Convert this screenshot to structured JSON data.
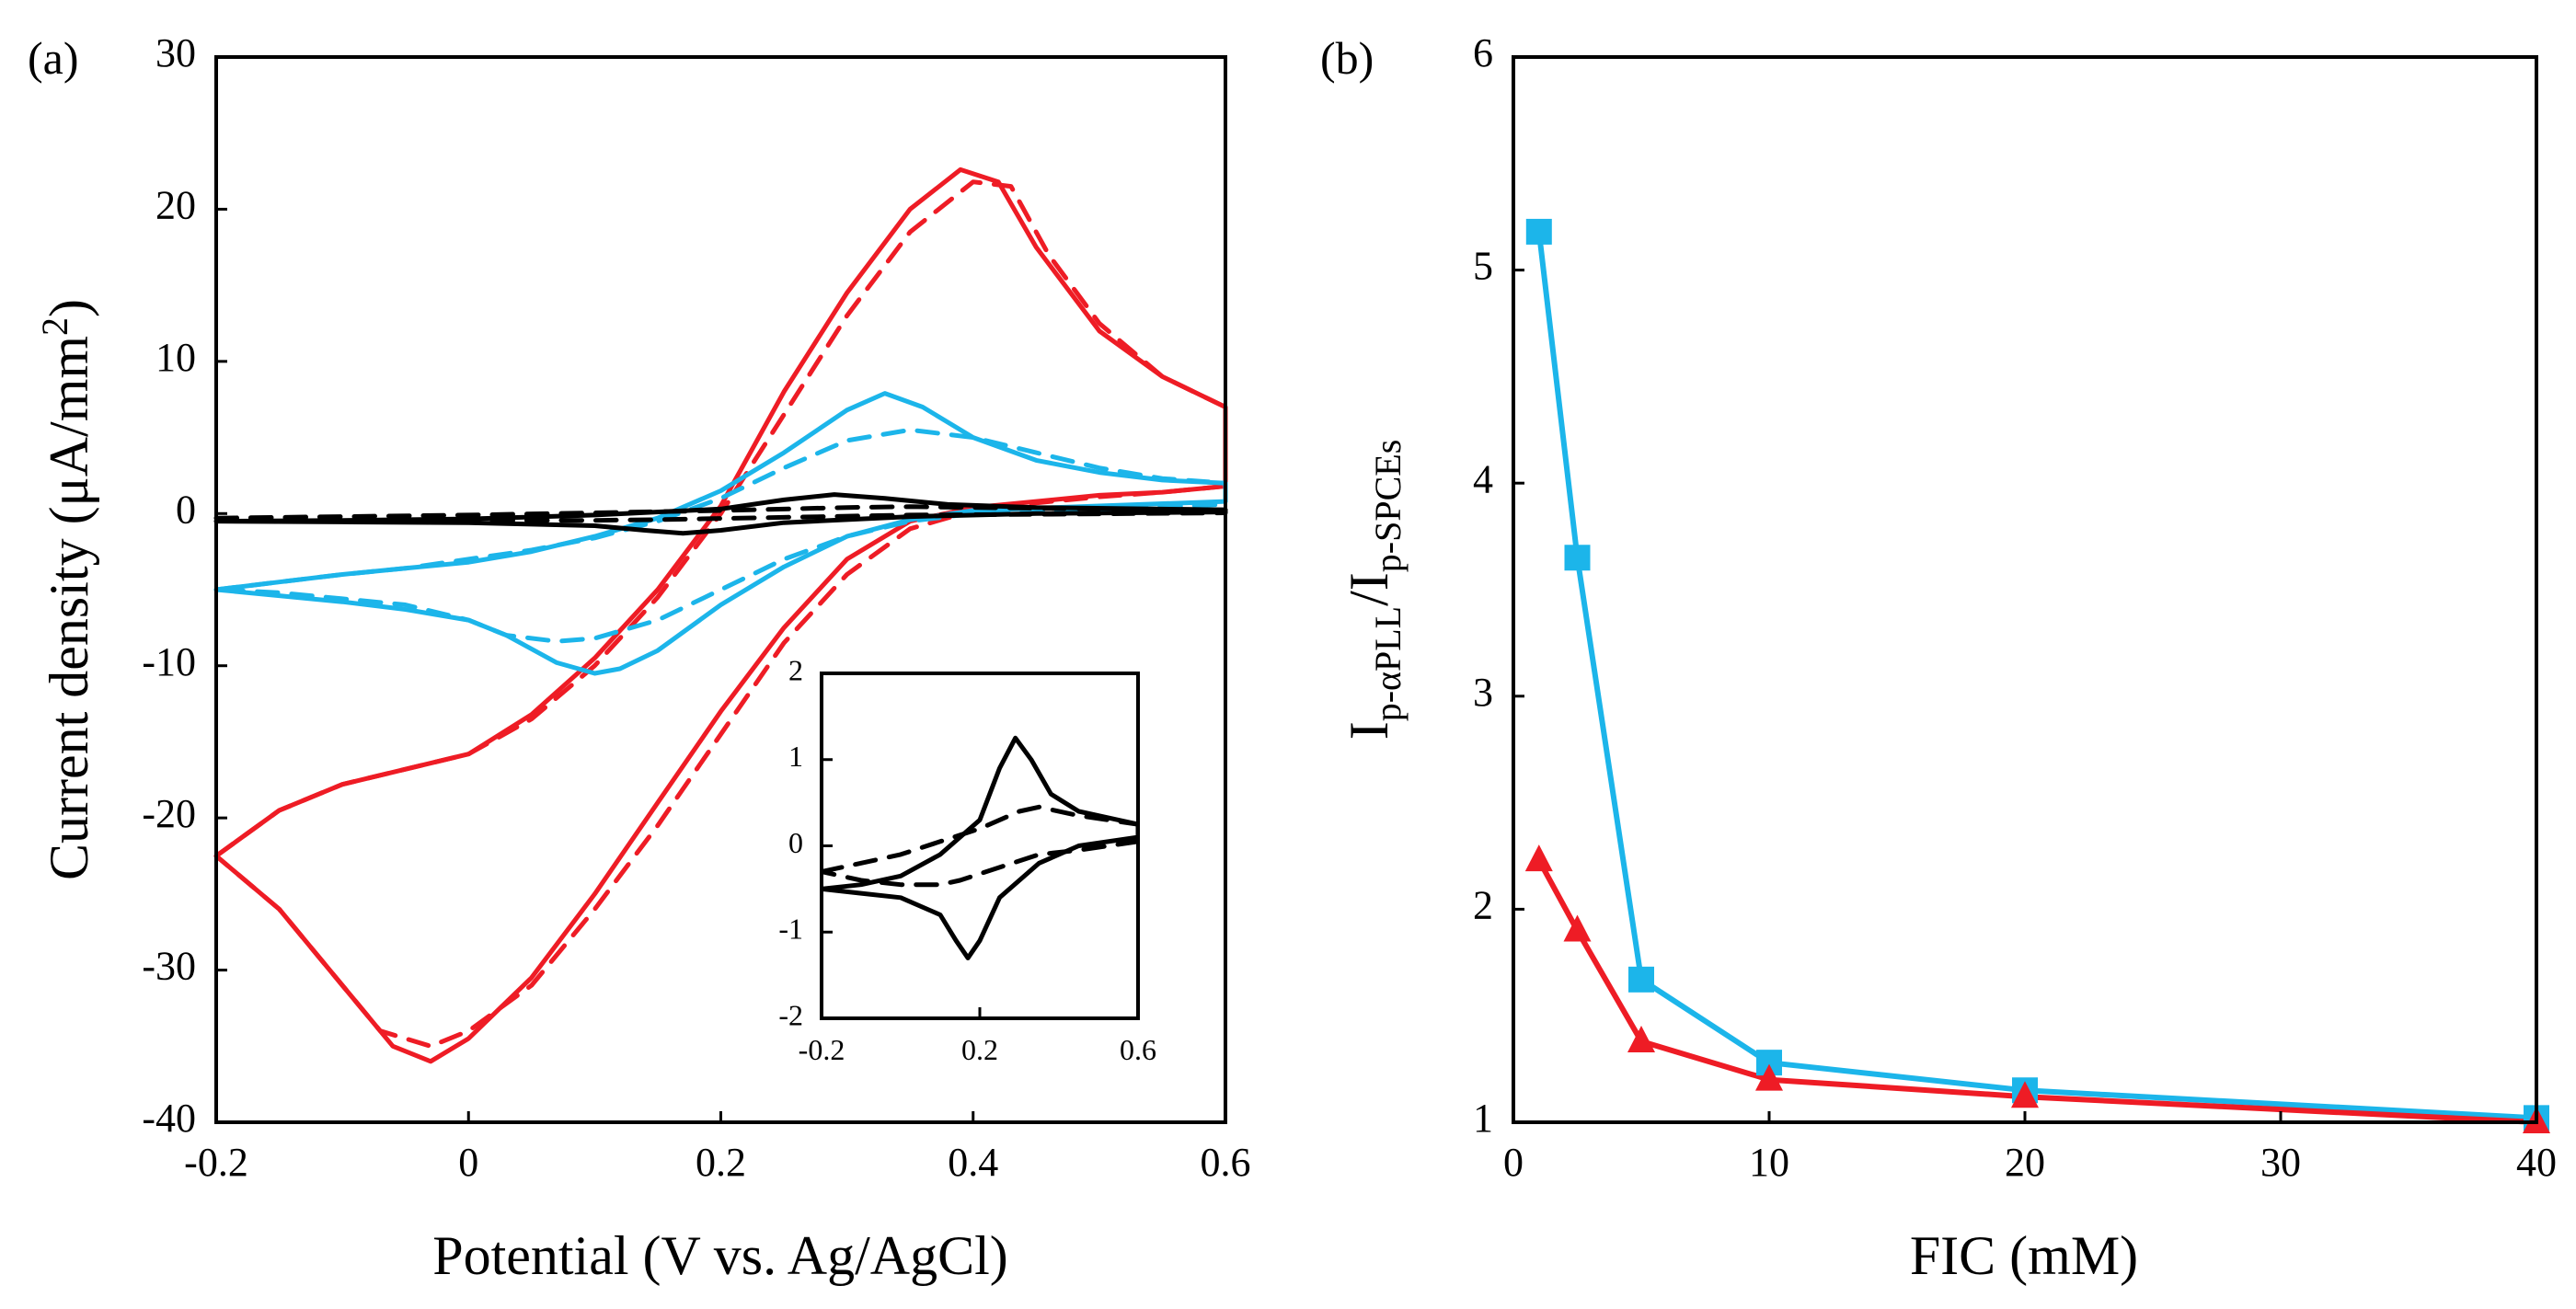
{
  "chart_data": [
    {
      "type": "line",
      "panel_label": "(a)",
      "xlabel": "Potential (V vs. Ag/AgCl)",
      "ylabel_main": "Current density (μA/mm",
      "ylabel_sup": "2",
      "ylabel_close": ")",
      "xlim": [
        -0.2,
        0.6
      ],
      "ylim": [
        -40,
        30
      ],
      "xticks": [
        "-0.2",
        "0",
        "0.2",
        "0.4",
        "0.6"
      ],
      "yticks": [
        "-40",
        "-30",
        "-20",
        "-10",
        "0",
        "10",
        "20",
        "30"
      ],
      "grid": false,
      "series": [
        {
          "name": "red solid",
          "color": "#ee1c25",
          "dash": false,
          "points": [
            [
              -0.2,
              -22.5
            ],
            [
              -0.15,
              -19.5
            ],
            [
              -0.1,
              -17.8
            ],
            [
              -0.05,
              -16.8
            ],
            [
              0,
              -15.8
            ],
            [
              0.05,
              -13.2
            ],
            [
              0.1,
              -9.5
            ],
            [
              0.15,
              -5
            ],
            [
              0.2,
              0.5
            ],
            [
              0.25,
              8
            ],
            [
              0.3,
              14.5
            ],
            [
              0.35,
              20
            ],
            [
              0.39,
              22.6
            ],
            [
              0.42,
              21.8
            ],
            [
              0.45,
              17.5
            ],
            [
              0.5,
              12
            ],
            [
              0.55,
              9
            ],
            [
              0.6,
              7
            ],
            [
              0.6,
              1.8
            ],
            [
              0.55,
              1.4
            ],
            [
              0.5,
              1.2
            ],
            [
              0.45,
              0.8
            ],
            [
              0.4,
              0.4
            ],
            [
              0.35,
              -0.5
            ],
            [
              0.3,
              -3
            ],
            [
              0.25,
              -7.5
            ],
            [
              0.2,
              -13
            ],
            [
              0.15,
              -19
            ],
            [
              0.1,
              -25
            ],
            [
              0.05,
              -30.5
            ],
            [
              0,
              -34.5
            ],
            [
              -0.03,
              -36
            ],
            [
              -0.06,
              -35
            ],
            [
              -0.1,
              -31
            ],
            [
              -0.15,
              -26
            ],
            [
              -0.2,
              -22.5
            ]
          ]
        },
        {
          "name": "red dashed",
          "color": "#ee1c25",
          "dash": true,
          "points": [
            [
              -0.2,
              -22.5
            ],
            [
              -0.15,
              -19.5
            ],
            [
              -0.1,
              -17.8
            ],
            [
              -0.05,
              -16.8
            ],
            [
              0,
              -15.8
            ],
            [
              0.05,
              -13.5
            ],
            [
              0.1,
              -10
            ],
            [
              0.15,
              -5.5
            ],
            [
              0.2,
              0
            ],
            [
              0.25,
              6.5
            ],
            [
              0.3,
              13
            ],
            [
              0.35,
              18.5
            ],
            [
              0.4,
              21.8
            ],
            [
              0.43,
              21.5
            ],
            [
              0.46,
              17
            ],
            [
              0.5,
              12.5
            ],
            [
              0.55,
              9
            ],
            [
              0.6,
              7
            ],
            [
              0.6,
              1.8
            ],
            [
              0.55,
              1.4
            ],
            [
              0.5,
              1.1
            ],
            [
              0.45,
              0.7
            ],
            [
              0.4,
              0.2
            ],
            [
              0.35,
              -1
            ],
            [
              0.3,
              -4
            ],
            [
              0.25,
              -8.5
            ],
            [
              0.2,
              -14.5
            ],
            [
              0.15,
              -20.5
            ],
            [
              0.1,
              -26
            ],
            [
              0.05,
              -31
            ],
            [
              0,
              -34
            ],
            [
              -0.03,
              -35
            ],
            [
              -0.07,
              -34
            ],
            [
              -0.1,
              -31
            ],
            [
              -0.15,
              -26
            ],
            [
              -0.2,
              -22.5
            ]
          ]
        },
        {
          "name": "blue solid",
          "color": "#1cb5ea",
          "dash": false,
          "points": [
            [
              -0.2,
              -5
            ],
            [
              -0.15,
              -4.5
            ],
            [
              -0.1,
              -4
            ],
            [
              -0.05,
              -3.6
            ],
            [
              0,
              -3.2
            ],
            [
              0.05,
              -2.5
            ],
            [
              0.1,
              -1.5
            ],
            [
              0.15,
              -0.3
            ],
            [
              0.2,
              1.5
            ],
            [
              0.25,
              4
            ],
            [
              0.3,
              6.8
            ],
            [
              0.33,
              7.9
            ],
            [
              0.36,
              7
            ],
            [
              0.4,
              5
            ],
            [
              0.45,
              3.5
            ],
            [
              0.5,
              2.7
            ],
            [
              0.55,
              2.2
            ],
            [
              0.6,
              2
            ],
            [
              0.6,
              0.8
            ],
            [
              0.5,
              0.5
            ],
            [
              0.4,
              0.2
            ],
            [
              0.35,
              -0.4
            ],
            [
              0.3,
              -1.5
            ],
            [
              0.25,
              -3.5
            ],
            [
              0.2,
              -6
            ],
            [
              0.15,
              -9
            ],
            [
              0.12,
              -10.2
            ],
            [
              0.1,
              -10.5
            ],
            [
              0.07,
              -9.8
            ],
            [
              0.03,
              -8
            ],
            [
              0,
              -7
            ],
            [
              -0.05,
              -6.3
            ],
            [
              -0.1,
              -5.8
            ],
            [
              -0.15,
              -5.4
            ],
            [
              -0.2,
              -5
            ]
          ]
        },
        {
          "name": "blue dashed",
          "color": "#1cb5ea",
          "dash": true,
          "points": [
            [
              -0.2,
              -5
            ],
            [
              -0.15,
              -4.5
            ],
            [
              -0.1,
              -4
            ],
            [
              -0.05,
              -3.6
            ],
            [
              0,
              -3
            ],
            [
              0.05,
              -2.4
            ],
            [
              0.1,
              -1.6
            ],
            [
              0.15,
              -0.5
            ],
            [
              0.2,
              1
            ],
            [
              0.25,
              3
            ],
            [
              0.3,
              4.8
            ],
            [
              0.35,
              5.5
            ],
            [
              0.4,
              5
            ],
            [
              0.45,
              4
            ],
            [
              0.5,
              3
            ],
            [
              0.55,
              2.3
            ],
            [
              0.6,
              2
            ],
            [
              0.6,
              0.6
            ],
            [
              0.5,
              0.3
            ],
            [
              0.4,
              0
            ],
            [
              0.35,
              -0.5
            ],
            [
              0.3,
              -1.5
            ],
            [
              0.25,
              -3
            ],
            [
              0.2,
              -5
            ],
            [
              0.15,
              -7
            ],
            [
              0.1,
              -8.2
            ],
            [
              0.07,
              -8.4
            ],
            [
              0.03,
              -8
            ],
            [
              0,
              -7
            ],
            [
              -0.05,
              -6
            ],
            [
              -0.1,
              -5.6
            ],
            [
              -0.15,
              -5.2
            ],
            [
              -0.2,
              -5
            ]
          ]
        },
        {
          "name": "black solid",
          "color": "#000000",
          "dash": false,
          "points": [
            [
              -0.2,
              -0.5
            ],
            [
              -0.1,
              -0.45
            ],
            [
              0,
              -0.35
            ],
            [
              0.1,
              -0.1
            ],
            [
              0.2,
              0.3
            ],
            [
              0.25,
              0.9
            ],
            [
              0.29,
              1.25
            ],
            [
              0.33,
              1
            ],
            [
              0.38,
              0.6
            ],
            [
              0.45,
              0.4
            ],
            [
              0.6,
              0.25
            ],
            [
              0.6,
              0.1
            ],
            [
              0.45,
              0
            ],
            [
              0.35,
              -0.2
            ],
            [
              0.25,
              -0.6
            ],
            [
              0.2,
              -1.1
            ],
            [
              0.17,
              -1.3
            ],
            [
              0.14,
              -1.1
            ],
            [
              0.1,
              -0.8
            ],
            [
              0,
              -0.6
            ],
            [
              -0.1,
              -0.55
            ],
            [
              -0.2,
              -0.5
            ]
          ]
        },
        {
          "name": "black dashed",
          "color": "#000000",
          "dash": true,
          "points": [
            [
              -0.2,
              -0.3
            ],
            [
              -0.1,
              -0.2
            ],
            [
              0,
              -0.1
            ],
            [
              0.1,
              0.05
            ],
            [
              0.2,
              0.2
            ],
            [
              0.3,
              0.4
            ],
            [
              0.35,
              0.45
            ],
            [
              0.45,
              0.35
            ],
            [
              0.6,
              0.25
            ],
            [
              0.6,
              0.05
            ],
            [
              0.45,
              -0.05
            ],
            [
              0.35,
              -0.1
            ],
            [
              0.25,
              -0.25
            ],
            [
              0.15,
              -0.4
            ],
            [
              0.1,
              -0.45
            ],
            [
              0,
              -0.45
            ],
            [
              -0.1,
              -0.4
            ],
            [
              -0.2,
              -0.3
            ]
          ]
        }
      ]
    },
    {
      "type": "line",
      "panel_label": "inset",
      "xlim": [
        -0.2,
        0.6
      ],
      "ylim": [
        -2,
        2
      ],
      "xticks": [
        "-0.2",
        "0.2",
        "0.6"
      ],
      "yticks": [
        "-2",
        "-1",
        "0",
        "1",
        "2"
      ],
      "series_ref": [
        "black solid",
        "black dashed"
      ]
    },
    {
      "type": "line",
      "panel_label": "(b)",
      "xlabel": "FIC (mM)",
      "ylabel_main": "I",
      "ylabel_sub1": "p-αPLL",
      "ylabel_mid": "/I",
      "ylabel_sub2": "p-SPCEs",
      "xlim": [
        0,
        40
      ],
      "ylim": [
        1,
        6
      ],
      "xticks": [
        "0",
        "10",
        "20",
        "30",
        "40"
      ],
      "yticks": [
        "1",
        "2",
        "3",
        "4",
        "5",
        "6"
      ],
      "grid": false,
      "series": [
        {
          "name": "blue squares",
          "color": "#1cb5ea",
          "marker": "square",
          "x": [
            1,
            2.5,
            5,
            10,
            20,
            40
          ],
          "y": [
            5.18,
            3.65,
            1.67,
            1.28,
            1.15,
            1.02
          ]
        },
        {
          "name": "red triangles",
          "color": "#ee1c25",
          "marker": "triangle",
          "x": [
            1,
            2.5,
            5,
            10,
            20,
            40
          ],
          "y": [
            2.23,
            1.9,
            1.38,
            1.2,
            1.12,
            1.0
          ]
        }
      ]
    }
  ]
}
